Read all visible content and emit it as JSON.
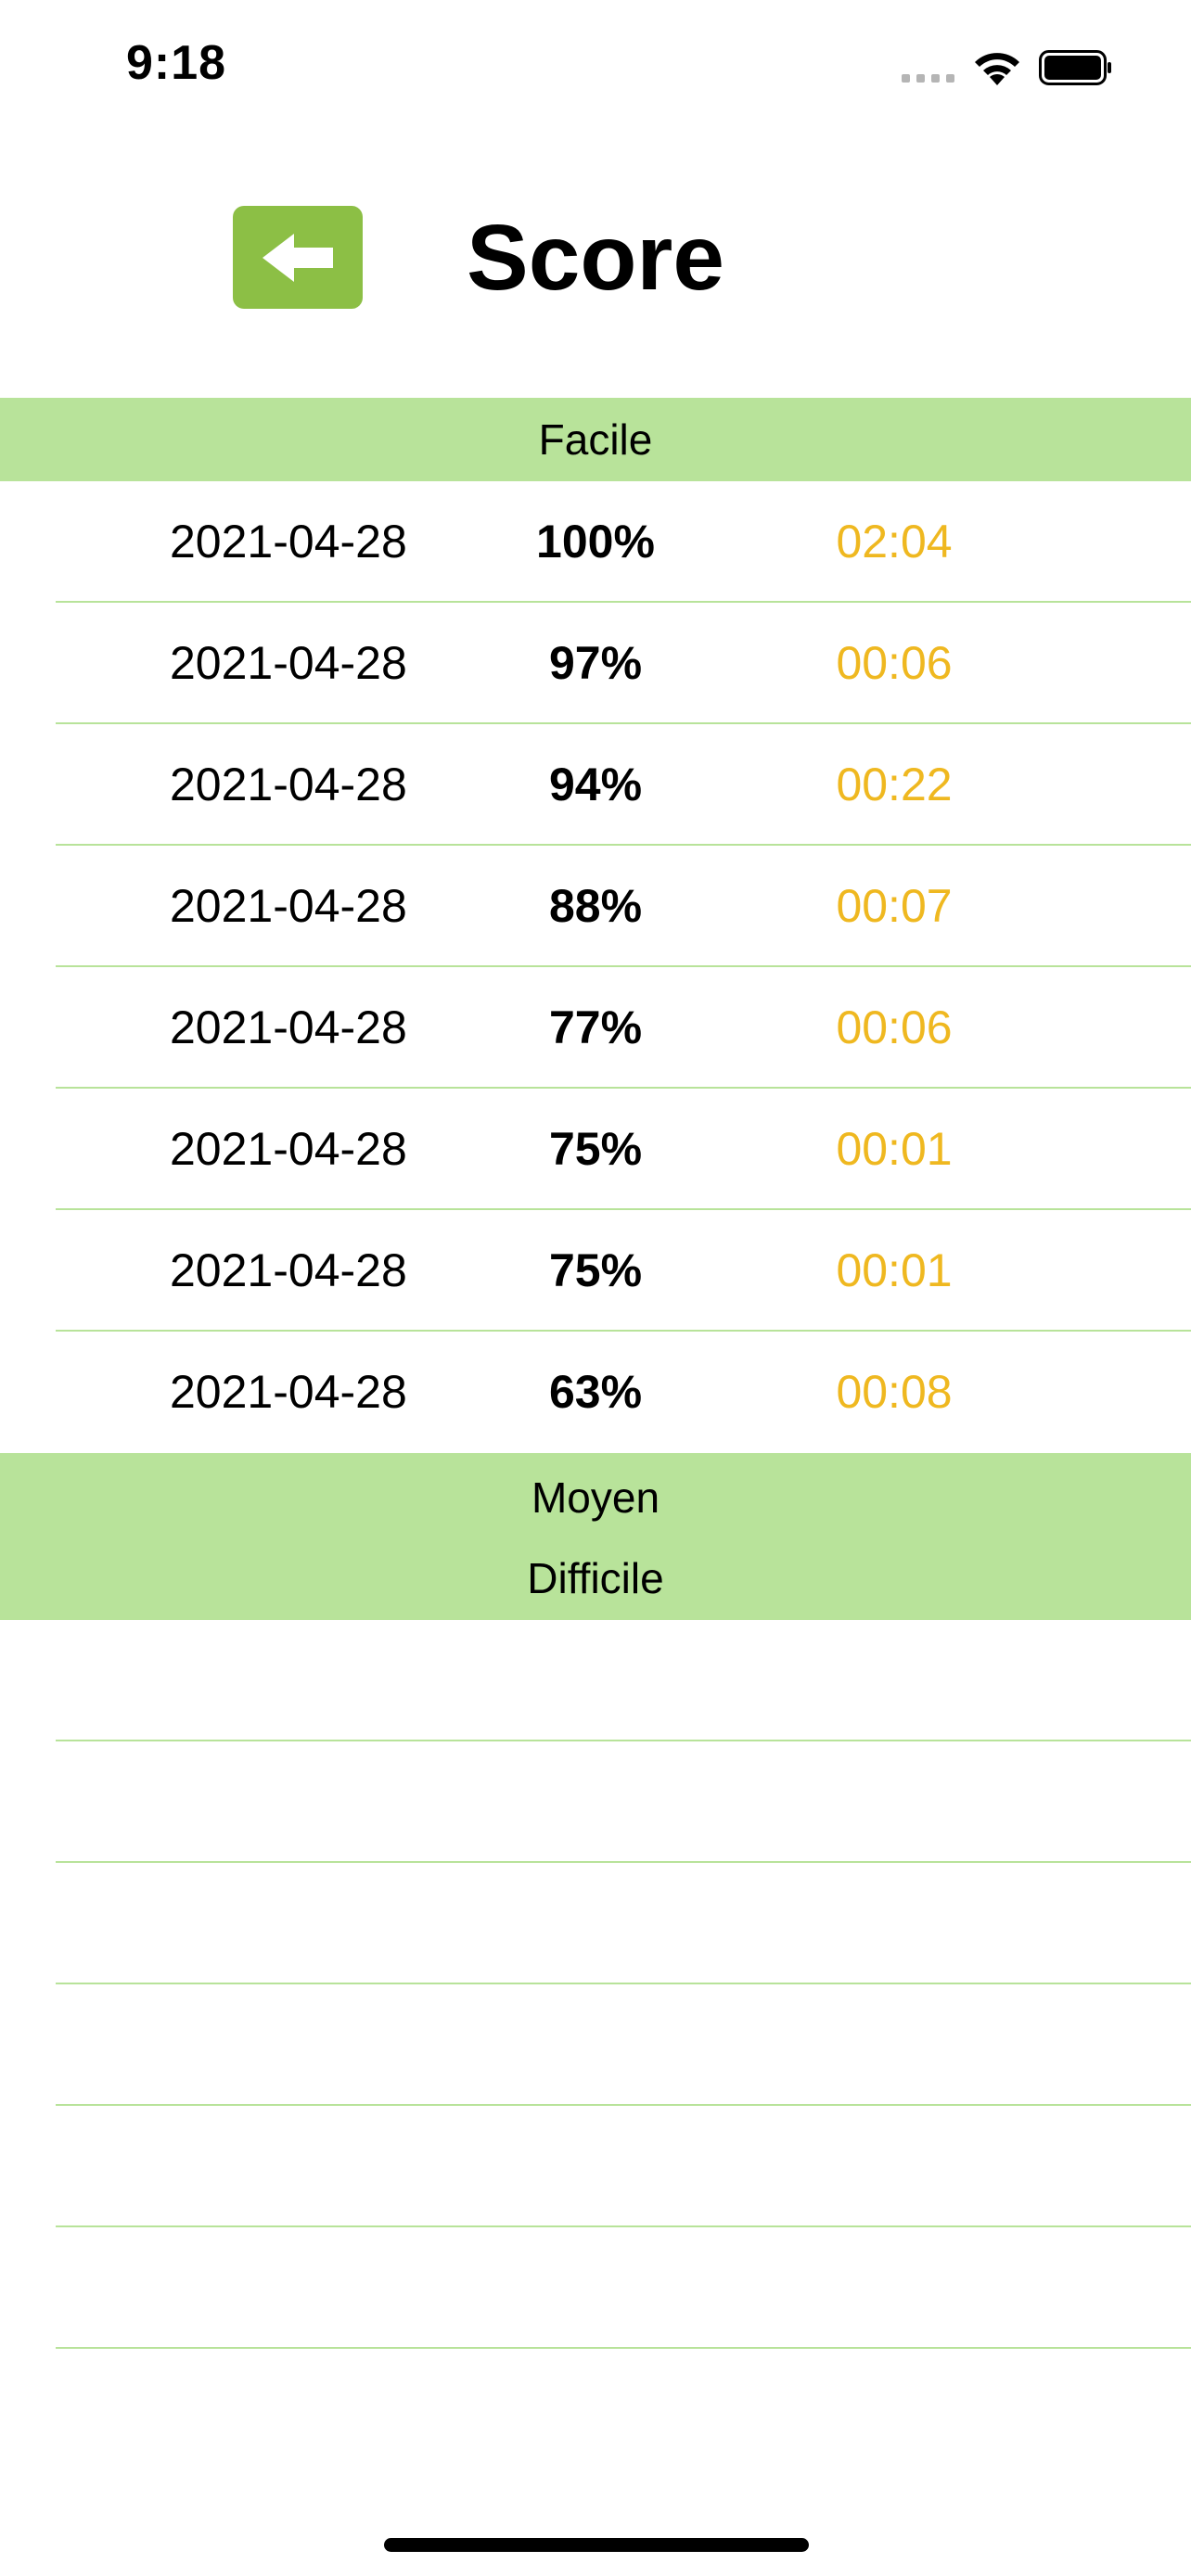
{
  "status_bar": {
    "time": "9:18",
    "icons": [
      "signal-icon",
      "wifi-icon",
      "battery-icon"
    ]
  },
  "header": {
    "back_icon": "arrow-left-icon",
    "title": "Score"
  },
  "colors": {
    "accent": "#8cbf45",
    "section_bg": "#b8e39a",
    "time_text": "#efb820"
  },
  "sections": {
    "facile": {
      "title": "Facile",
      "rows": [
        {
          "date": "2021-04-28",
          "score": "100%",
          "time": "02:04"
        },
        {
          "date": "2021-04-28",
          "score": "97%",
          "time": "00:06"
        },
        {
          "date": "2021-04-28",
          "score": "94%",
          "time": "00:22"
        },
        {
          "date": "2021-04-28",
          "score": "88%",
          "time": "00:07"
        },
        {
          "date": "2021-04-28",
          "score": "77%",
          "time": "00:06"
        },
        {
          "date": "2021-04-28",
          "score": "75%",
          "time": "00:01"
        },
        {
          "date": "2021-04-28",
          "score": "75%",
          "time": "00:01"
        },
        {
          "date": "2021-04-28",
          "score": "63%",
          "time": "00:08"
        }
      ]
    },
    "moyen": {
      "title": "Moyen"
    },
    "difficile": {
      "title": "Difficile"
    }
  }
}
